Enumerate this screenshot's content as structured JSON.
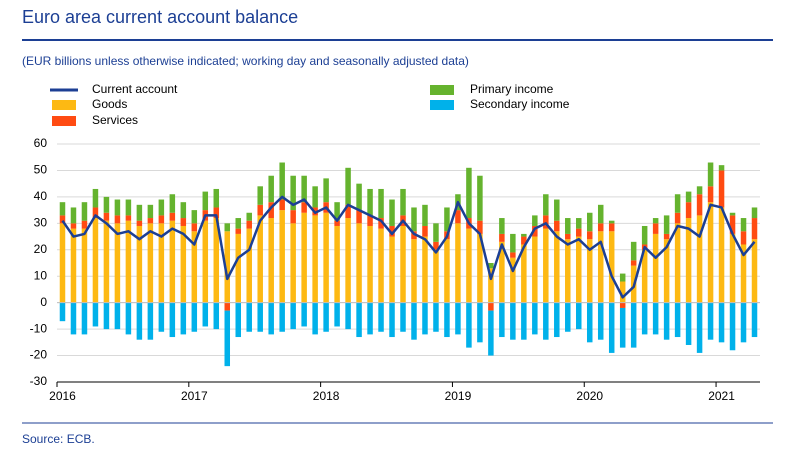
{
  "chart_data": {
    "type": "bar",
    "title": "Euro area current account balance",
    "subtitle": "(EUR billions unless otherwise indicated; working day and seasonally adjusted data)",
    "source": "Source: ECB.",
    "categories": [
      "2016",
      null,
      null,
      null,
      null,
      null,
      null,
      null,
      null,
      null,
      null,
      null,
      "2017",
      null,
      null,
      null,
      null,
      null,
      null,
      null,
      null,
      null,
      null,
      null,
      "2018",
      null,
      null,
      null,
      null,
      null,
      null,
      null,
      null,
      null,
      null,
      null,
      "2019",
      null,
      null,
      null,
      null,
      null,
      null,
      null,
      null,
      null,
      null,
      null,
      "2020",
      null,
      null,
      null,
      null,
      null,
      null,
      null,
      null,
      null,
      null,
      null,
      "2021",
      null,
      null,
      null
    ],
    "ylim": [
      -30,
      60
    ],
    "yticks": [
      -30,
      -20,
      -10,
      0,
      10,
      20,
      30,
      40,
      50,
      60
    ],
    "grid": true,
    "series": [
      {
        "name": "Current account",
        "type": "line",
        "color": "#1c3f94",
        "values": [
          31,
          25,
          26,
          33,
          30,
          26,
          27,
          24,
          27,
          25,
          28,
          26,
          22,
          33,
          33,
          9,
          17,
          20,
          31,
          36,
          40,
          37,
          39,
          34,
          36,
          31,
          37,
          35,
          33,
          31,
          26,
          31,
          26,
          24,
          19,
          25,
          38,
          30,
          26,
          9,
          22,
          12,
          21,
          28,
          30,
          25,
          22,
          24,
          20,
          23,
          10,
          2,
          6,
          21,
          17,
          21,
          29,
          28,
          25,
          37,
          36,
          26,
          18,
          23
        ]
      },
      {
        "name": "Goods",
        "type": "bar",
        "color": "#fdb913",
        "values": [
          30,
          28,
          28,
          32,
          31,
          30,
          31,
          29,
          30,
          30,
          31,
          29,
          27,
          31,
          32,
          27,
          26,
          28,
          33,
          32,
          35,
          30,
          34,
          33,
          34,
          29,
          32,
          30,
          29,
          28,
          25,
          29,
          24,
          25,
          20,
          24,
          30,
          28,
          26,
          13,
          23,
          17,
          22,
          25,
          28,
          27,
          24,
          25,
          24,
          27,
          27,
          8,
          14,
          20,
          26,
          24,
          30,
          32,
          33,
          38,
          36,
          26,
          22,
          24
        ]
      },
      {
        "name": "Services",
        "type": "bar",
        "color": "#ff4b12",
        "values": [
          3,
          2,
          3,
          4,
          3,
          3,
          2,
          2,
          2,
          3,
          3,
          3,
          3,
          4,
          4,
          -3,
          2,
          3,
          4,
          6,
          4,
          5,
          4,
          3,
          4,
          2,
          5,
          5,
          4,
          4,
          4,
          4,
          3,
          4,
          3,
          3,
          5,
          4,
          5,
          -3,
          3,
          2,
          3,
          4,
          5,
          4,
          2,
          3,
          3,
          3,
          3,
          -2,
          2,
          2,
          4,
          2,
          4,
          6,
          8,
          6,
          14,
          7,
          5,
          8
        ]
      },
      {
        "name": "Primary income",
        "type": "bar",
        "color": "#65b32e",
        "values": [
          5,
          6,
          7,
          7,
          6,
          6,
          6,
          6,
          5,
          6,
          7,
          6,
          5,
          7,
          7,
          3,
          4,
          3,
          7,
          10,
          14,
          13,
          10,
          8,
          9,
          7,
          14,
          10,
          10,
          11,
          10,
          10,
          9,
          8,
          7,
          9,
          6,
          19,
          17,
          2,
          6,
          7,
          1,
          4,
          8,
          8,
          6,
          4,
          7,
          7,
          1,
          3,
          7,
          7,
          2,
          7,
          7,
          4,
          3,
          9,
          2,
          1,
          5,
          4
        ]
      },
      {
        "name": "Secondary income",
        "type": "bar",
        "color": "#00b1ea",
        "values": [
          -7,
          -12,
          -12,
          -9,
          -10,
          -10,
          -12,
          -14,
          -14,
          -11,
          -13,
          -12,
          -11,
          -9,
          -10,
          -21,
          -13,
          -11,
          -11,
          -12,
          -11,
          -10,
          -9,
          -12,
          -11,
          -9,
          -10,
          -13,
          -12,
          -11,
          -13,
          -11,
          -14,
          -12,
          -11,
          -13,
          -12,
          -17,
          -15,
          -17,
          -13,
          -14,
          -14,
          -12,
          -14,
          -13,
          -11,
          -10,
          -15,
          -14,
          -19,
          -15,
          -17,
          -12,
          -12,
          -14,
          -13,
          -16,
          -19,
          -14,
          -15,
          -18,
          -15,
          -13
        ]
      }
    ]
  }
}
